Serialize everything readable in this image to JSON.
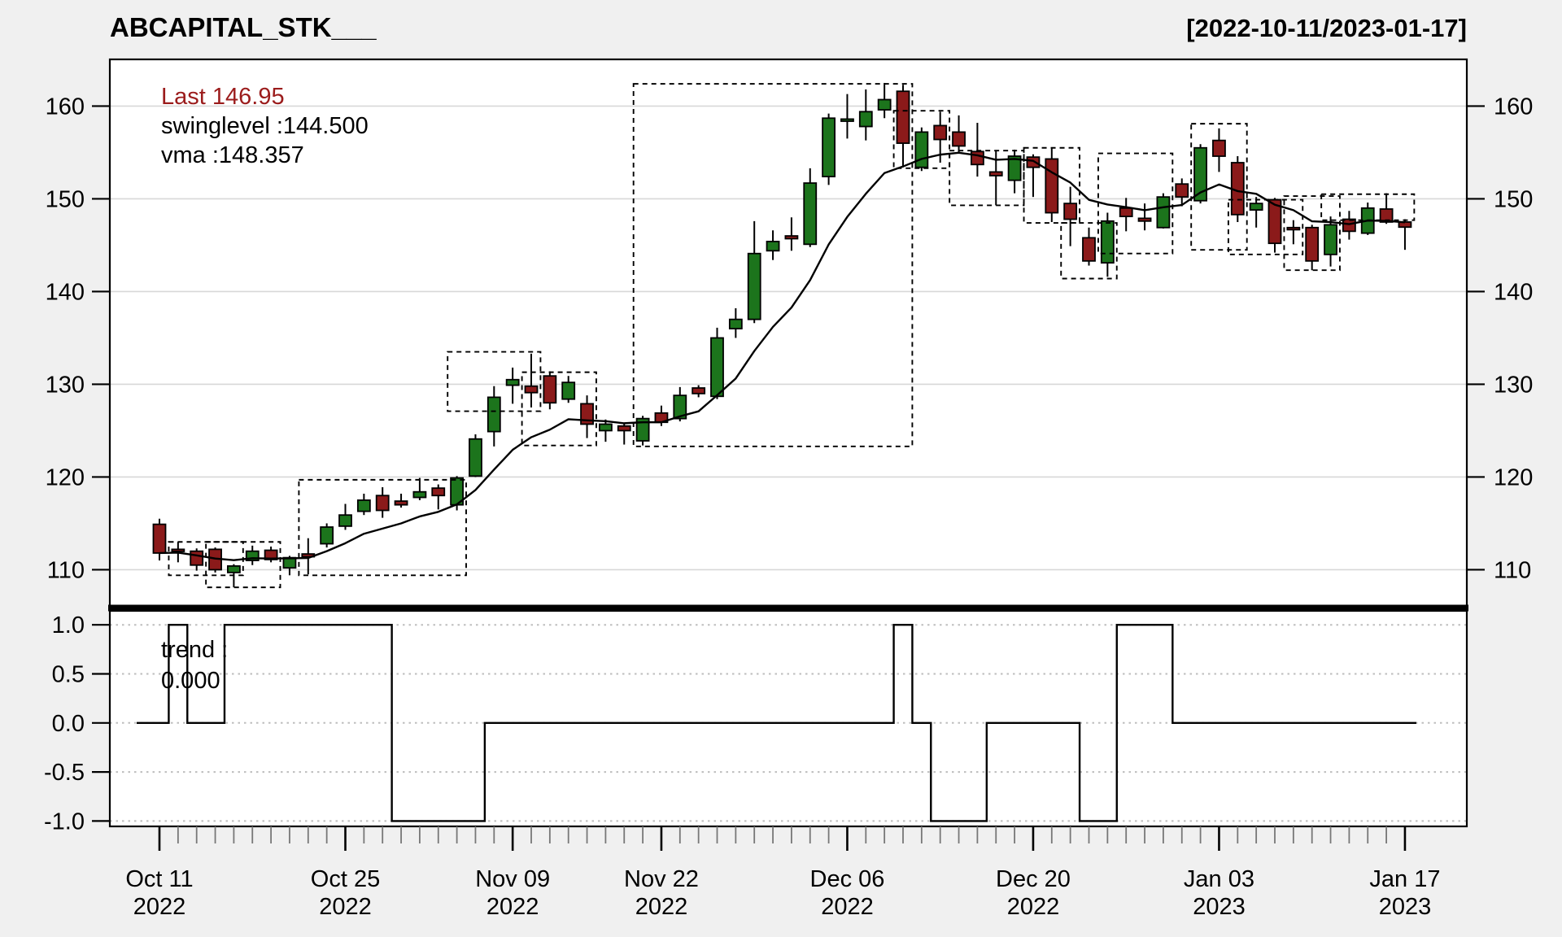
{
  "header": {
    "title": "ABCAPITAL_STK___",
    "date_range": "[2022-10-11/2023-01-17]"
  },
  "legend": {
    "last_label": "Last 146.95",
    "swinglevel_label": "swinglevel :144.500",
    "vma_label": "vma :148.357"
  },
  "trend_legend": {
    "label": "trend :",
    "value": "0.000"
  },
  "colors": {
    "up_candle": "#1c741c",
    "down_candle": "#8b1a1a",
    "last_label_text": "#9b1c1c",
    "ma_line": "#000000",
    "grid_main": "#d8d8d8",
    "grid_trend": "#bdbdbd",
    "background": "#f0f0f0",
    "panel_fill": "#ffffff"
  },
  "chart_data": [
    {
      "type": "candlestick",
      "panel": "price",
      "title": "ABCAPITAL_STK___",
      "range_label": "[2022-10-11/2023-01-17]",
      "last": 146.95,
      "swinglevel": 144.5,
      "vma": 148.357,
      "ylim": [
        105.8,
        165.0
      ],
      "grid": true,
      "yticks": [
        {
          "label": "160",
          "value": 160
        },
        {
          "label": "150",
          "value": 150
        },
        {
          "label": "140",
          "value": 140
        },
        {
          "label": "130",
          "value": 130
        },
        {
          "label": "120",
          "value": 120
        },
        {
          "label": "110",
          "value": 110
        }
      ],
      "xticks": [
        {
          "index": 0,
          "line1": "Oct 11",
          "line2": "2022"
        },
        {
          "index": 10,
          "line1": "Oct 25",
          "line2": "2022"
        },
        {
          "index": 19,
          "line1": "Nov 09",
          "line2": "2022"
        },
        {
          "index": 27,
          "line1": "Nov 22",
          "line2": "2022"
        },
        {
          "index": 37,
          "line1": "Dec 06",
          "line2": "2022"
        },
        {
          "index": 47,
          "line1": "Dec 20",
          "line2": "2022"
        },
        {
          "index": 57,
          "line1": "Jan 03",
          "line2": "2023"
        },
        {
          "index": 67,
          "line1": "Jan 17",
          "line2": "2023"
        }
      ],
      "dates": [
        "2022-10-11",
        "2022-10-12",
        "2022-10-13",
        "2022-10-14",
        "2022-10-17",
        "2022-10-18",
        "2022-10-19",
        "2022-10-20",
        "2022-10-21",
        "2022-10-24",
        "2022-10-25",
        "2022-10-26",
        "2022-10-27",
        "2022-10-28",
        "2022-10-31",
        "2022-11-03",
        "2022-11-04",
        "2022-11-07",
        "2022-11-08",
        "2022-11-09",
        "2022-11-10",
        "2022-11-11",
        "2022-11-14",
        "2022-11-15",
        "2022-11-16",
        "2022-11-17",
        "2022-11-21",
        "2022-11-22",
        "2022-11-23",
        "2022-11-24",
        "2022-11-25",
        "2022-11-28",
        "2022-11-29",
        "2022-11-30",
        "2022-12-01",
        "2022-12-02",
        "2022-12-05",
        "2022-12-06",
        "2022-12-07",
        "2022-12-08",
        "2022-12-09",
        "2022-12-12",
        "2022-12-13",
        "2022-12-14",
        "2022-12-15",
        "2022-12-16",
        "2022-12-19",
        "2022-12-20",
        "2022-12-21",
        "2022-12-22",
        "2022-12-23",
        "2022-12-26",
        "2022-12-27",
        "2022-12-28",
        "2022-12-29",
        "2022-12-30",
        "2023-01-02",
        "2023-01-03",
        "2023-01-04",
        "2023-01-05",
        "2023-01-06",
        "2023-01-09",
        "2023-01-10",
        "2023-01-11",
        "2023-01-12",
        "2023-01-13",
        "2023-01-16",
        "2023-01-17"
      ],
      "ohlc": [
        [
          114.9,
          115.5,
          111.0,
          111.8
        ],
        [
          112.2,
          113.0,
          110.8,
          112.0
        ],
        [
          112.0,
          112.3,
          109.9,
          110.5
        ],
        [
          112.2,
          112.4,
          109.7,
          110.0
        ],
        [
          109.7,
          110.6,
          108.1,
          110.4
        ],
        [
          111.0,
          112.6,
          110.5,
          112.0
        ],
        [
          112.1,
          112.5,
          110.8,
          111.1
        ],
        [
          110.2,
          111.5,
          109.4,
          111.3
        ],
        [
          111.7,
          113.4,
          109.5,
          111.4
        ],
        [
          112.8,
          115.0,
          112.4,
          114.6
        ],
        [
          114.7,
          117.1,
          114.3,
          115.9
        ],
        [
          116.3,
          118.2,
          115.9,
          117.5
        ],
        [
          118.0,
          118.9,
          115.6,
          116.4
        ],
        [
          117.4,
          118.2,
          116.7,
          117.0
        ],
        [
          117.8,
          119.9,
          117.5,
          118.4
        ],
        [
          118.8,
          119.2,
          116.5,
          118.0
        ],
        [
          117.0,
          120.1,
          116.4,
          119.9
        ],
        [
          120.1,
          124.6,
          120.0,
          124.1
        ],
        [
          124.9,
          129.8,
          123.3,
          128.6
        ],
        [
          129.9,
          131.8,
          127.9,
          130.5
        ],
        [
          129.8,
          133.3,
          127.5,
          129.1
        ],
        [
          130.9,
          131.4,
          127.3,
          128.0
        ],
        [
          128.4,
          130.9,
          128.0,
          130.2
        ],
        [
          127.9,
          128.8,
          124.2,
          125.7
        ],
        [
          125.0,
          126.2,
          123.8,
          125.7
        ],
        [
          125.5,
          125.8,
          123.5,
          125.0
        ],
        [
          123.9,
          126.6,
          123.4,
          126.3
        ],
        [
          126.9,
          127.7,
          125.5,
          125.9
        ],
        [
          126.3,
          129.7,
          126.0,
          128.8
        ],
        [
          129.6,
          129.9,
          128.6,
          129.0
        ],
        [
          128.7,
          136.1,
          128.4,
          135.0
        ],
        [
          136.0,
          138.2,
          135.0,
          137.0
        ],
        [
          137.0,
          147.6,
          136.6,
          144.1
        ],
        [
          144.4,
          146.6,
          143.4,
          145.4
        ],
        [
          146.0,
          148.0,
          144.4,
          145.7
        ],
        [
          145.1,
          153.3,
          144.8,
          151.7
        ],
        [
          152.4,
          159.2,
          151.5,
          158.7
        ],
        [
          158.4,
          161.3,
          156.5,
          158.6
        ],
        [
          157.8,
          161.8,
          156.3,
          159.4
        ],
        [
          159.6,
          162.5,
          158.7,
          160.7
        ],
        [
          161.6,
          162.3,
          153.4,
          156.0
        ],
        [
          153.4,
          157.7,
          153.0,
          157.2
        ],
        [
          157.9,
          159.4,
          153.9,
          156.4
        ],
        [
          157.2,
          159.0,
          155.0,
          155.7
        ],
        [
          155.1,
          158.2,
          152.4,
          153.7
        ],
        [
          152.9,
          155.2,
          149.3,
          152.5
        ],
        [
          152.0,
          155.3,
          150.6,
          154.6
        ],
        [
          154.5,
          154.8,
          150.2,
          153.4
        ],
        [
          154.3,
          155.5,
          147.5,
          148.5
        ],
        [
          149.5,
          151.3,
          144.9,
          147.8
        ],
        [
          145.8,
          146.9,
          142.8,
          143.3
        ],
        [
          143.1,
          148.5,
          141.6,
          147.6
        ],
        [
          149.0,
          150.1,
          146.5,
          148.1
        ],
        [
          147.9,
          149.5,
          146.6,
          147.6
        ],
        [
          146.9,
          150.6,
          146.8,
          150.2
        ],
        [
          151.6,
          152.2,
          149.2,
          150.2
        ],
        [
          149.8,
          155.9,
          149.5,
          155.5
        ],
        [
          156.3,
          157.6,
          152.9,
          154.6
        ],
        [
          153.9,
          154.6,
          147.5,
          148.3
        ],
        [
          148.8,
          150.2,
          146.9,
          149.5
        ],
        [
          149.9,
          150.1,
          144.2,
          145.2
        ],
        [
          146.9,
          147.7,
          145.1,
          146.7
        ],
        [
          146.9,
          147.2,
          142.3,
          143.3
        ],
        [
          144.0,
          148.1,
          142.7,
          147.2
        ],
        [
          147.8,
          148.7,
          145.6,
          146.5
        ],
        [
          146.3,
          149.6,
          146.1,
          149.0
        ],
        [
          148.9,
          150.6,
          147.3,
          147.5
        ],
        [
          147.5,
          147.8,
          144.5,
          146.95
        ]
      ],
      "swing_boxes": [
        {
          "start": 1,
          "end": 4,
          "top": 113.0,
          "bottom": 109.4
        },
        {
          "start": 3,
          "end": 6,
          "top": 113.0,
          "bottom": 108.1
        },
        {
          "start": 8,
          "end": 16,
          "top": 119.7,
          "bottom": 109.4
        },
        {
          "start": 16,
          "end": 20,
          "top": 133.5,
          "bottom": 127.1
        },
        {
          "start": 20,
          "end": 23,
          "top": 131.3,
          "bottom": 123.4
        },
        {
          "start": 26,
          "end": 40,
          "top": 162.4,
          "bottom": 123.3
        },
        {
          "start": 40,
          "end": 42,
          "top": 159.5,
          "bottom": 153.3
        },
        {
          "start": 43,
          "end": 46,
          "top": 155.2,
          "bottom": 149.3
        },
        {
          "start": 47,
          "end": 49,
          "top": 155.5,
          "bottom": 147.4
        },
        {
          "start": 49,
          "end": 51,
          "top": 147.4,
          "bottom": 141.4
        },
        {
          "start": 51,
          "end": 54,
          "top": 154.9,
          "bottom": 144.1
        },
        {
          "start": 56,
          "end": 58,
          "top": 158.1,
          "bottom": 144.5
        },
        {
          "start": 58,
          "end": 61,
          "top": 149.9,
          "bottom": 144.0
        },
        {
          "start": 61,
          "end": 63,
          "top": 150.3,
          "bottom": 142.3
        },
        {
          "start": 63,
          "end": 67,
          "top": 150.5,
          "bottom": 147.7
        }
      ]
    },
    {
      "type": "step",
      "panel": "trend",
      "name": "trend",
      "label": "trend :",
      "last_value": "0.000",
      "ylim": [
        -1.1,
        1.14
      ],
      "yticks": [
        {
          "label": "1.0",
          "value": 1.0
        },
        {
          "label": "0.5",
          "value": 0.5
        },
        {
          "label": "0.0",
          "value": 0.0
        },
        {
          "label": "-0.5",
          "value": -0.5
        },
        {
          "label": "-1.0",
          "value": -1.0
        }
      ],
      "values": [
        0,
        1,
        0,
        0,
        1,
        1,
        1,
        1,
        1,
        1,
        1,
        1,
        1,
        -1,
        -1,
        -1,
        -1,
        -1,
        0,
        0,
        0,
        0,
        0,
        0,
        0,
        0,
        0,
        0,
        0,
        0,
        0,
        0,
        0,
        0,
        0,
        0,
        0,
        0,
        0,
        0,
        1,
        0,
        -1,
        -1,
        -1,
        0,
        0,
        0,
        0,
        0,
        -1,
        -1,
        1,
        1,
        1,
        0,
        0,
        0,
        0,
        0,
        0,
        0,
        0,
        0,
        0,
        0,
        0,
        0
      ]
    }
  ]
}
